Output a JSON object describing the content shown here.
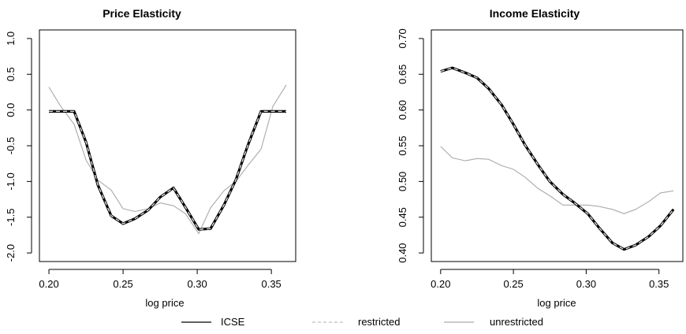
{
  "chart_data": [
    {
      "type": "line",
      "title": "Price Elasticity",
      "xlabel": "log price",
      "ylabel": "",
      "xlim": [
        0.2,
        0.36
      ],
      "ylim": [
        -2.0,
        1.0
      ],
      "x_ticks": [
        0.2,
        0.25,
        0.3,
        0.35
      ],
      "x_tick_labels": [
        "0.20",
        "0.25",
        "0.30",
        "0.35"
      ],
      "y_ticks": [
        -2.0,
        -1.5,
        -1.0,
        -0.5,
        0.0,
        0.5,
        1.0
      ],
      "y_tick_labels": [
        "-2.0",
        "-1.5",
        "-1.0",
        "-0.5",
        "0.0",
        "0.5",
        "1.0"
      ],
      "grid": false,
      "series": [
        {
          "name": "ICSE",
          "color": "#000000",
          "style": "solid",
          "x": [
            0.2,
            0.208,
            0.217,
            0.225,
            0.233,
            0.242,
            0.25,
            0.258,
            0.267,
            0.275,
            0.284,
            0.292,
            0.301,
            0.309,
            0.318,
            0.326,
            0.334,
            0.343,
            0.351,
            0.36
          ],
          "y": [
            -0.02,
            -0.02,
            -0.02,
            -0.45,
            -1.05,
            -1.48,
            -1.59,
            -1.52,
            -1.4,
            -1.22,
            -1.09,
            -1.36,
            -1.67,
            -1.66,
            -1.33,
            -0.98,
            -0.5,
            -0.02,
            -0.02,
            -0.02
          ]
        },
        {
          "name": "restricted",
          "color": "#e8e8e8",
          "style": "dashed",
          "x": [
            0.2,
            0.208,
            0.217,
            0.225,
            0.233,
            0.242,
            0.25,
            0.258,
            0.267,
            0.275,
            0.284,
            0.292,
            0.301,
            0.309,
            0.318,
            0.326,
            0.334,
            0.343,
            0.351,
            0.36
          ],
          "y": [
            -0.02,
            -0.02,
            -0.02,
            -0.45,
            -1.05,
            -1.48,
            -1.59,
            -1.52,
            -1.4,
            -1.22,
            -1.09,
            -1.36,
            -1.67,
            -1.66,
            -1.33,
            -0.98,
            -0.5,
            -0.02,
            -0.02,
            -0.02
          ]
        },
        {
          "name": "unrestricted",
          "color": "#aaaaaa",
          "style": "solid",
          "x": [
            0.2,
            0.208,
            0.217,
            0.225,
            0.233,
            0.242,
            0.25,
            0.258,
            0.267,
            0.275,
            0.284,
            0.292,
            0.301,
            0.309,
            0.318,
            0.326,
            0.334,
            0.343,
            0.351,
            0.36
          ],
          "y": [
            0.32,
            0.05,
            -0.2,
            -0.7,
            -0.98,
            -1.12,
            -1.38,
            -1.42,
            -1.38,
            -1.3,
            -1.34,
            -1.45,
            -1.73,
            -1.37,
            -1.13,
            -1.0,
            -0.78,
            -0.55,
            0.05,
            0.35
          ]
        }
      ]
    },
    {
      "type": "line",
      "title": "Income Elasticity",
      "xlabel": "log price",
      "ylabel": "",
      "xlim": [
        0.2,
        0.36
      ],
      "ylim": [
        0.4,
        0.7
      ],
      "x_ticks": [
        0.2,
        0.25,
        0.3,
        0.35
      ],
      "x_tick_labels": [
        "0.20",
        "0.25",
        "0.30",
        "0.35"
      ],
      "y_ticks": [
        0.4,
        0.45,
        0.5,
        0.55,
        0.6,
        0.65,
        0.7
      ],
      "y_tick_labels": [
        "0.40",
        "0.45",
        "0.50",
        "0.55",
        "0.60",
        "0.65",
        "0.70"
      ],
      "grid": false,
      "series": [
        {
          "name": "ICSE",
          "color": "#000000",
          "style": "solid",
          "x": [
            0.2,
            0.208,
            0.217,
            0.225,
            0.233,
            0.242,
            0.25,
            0.258,
            0.267,
            0.275,
            0.284,
            0.292,
            0.301,
            0.309,
            0.318,
            0.326,
            0.334,
            0.343,
            0.351,
            0.36
          ],
          "y": [
            0.654,
            0.659,
            0.652,
            0.645,
            0.63,
            0.607,
            0.58,
            0.551,
            0.523,
            0.5,
            0.482,
            0.47,
            0.455,
            0.435,
            0.414,
            0.405,
            0.411,
            0.423,
            0.438,
            0.461
          ]
        },
        {
          "name": "restricted",
          "color": "#e8e8e8",
          "style": "dashed",
          "x": [
            0.2,
            0.208,
            0.217,
            0.225,
            0.233,
            0.242,
            0.25,
            0.258,
            0.267,
            0.275,
            0.284,
            0.292,
            0.301,
            0.309,
            0.318,
            0.326,
            0.334,
            0.343,
            0.351,
            0.36
          ],
          "y": [
            0.654,
            0.659,
            0.652,
            0.645,
            0.63,
            0.607,
            0.58,
            0.551,
            0.523,
            0.5,
            0.482,
            0.47,
            0.455,
            0.435,
            0.414,
            0.405,
            0.411,
            0.423,
            0.438,
            0.461
          ]
        },
        {
          "name": "unrestricted",
          "color": "#aaaaaa",
          "style": "solid",
          "x": [
            0.2,
            0.208,
            0.217,
            0.225,
            0.233,
            0.242,
            0.25,
            0.258,
            0.267,
            0.275,
            0.284,
            0.292,
            0.301,
            0.309,
            0.318,
            0.326,
            0.334,
            0.343,
            0.351,
            0.36
          ],
          "y": [
            0.549,
            0.533,
            0.529,
            0.532,
            0.531,
            0.522,
            0.517,
            0.506,
            0.49,
            0.48,
            0.467,
            0.467,
            0.467,
            0.465,
            0.461,
            0.455,
            0.461,
            0.472,
            0.484,
            0.487
          ]
        }
      ]
    }
  ],
  "legend": {
    "placement": "bottom",
    "items": [
      {
        "label": "ICSE",
        "color": "#000000",
        "style": "solid"
      },
      {
        "label": "restricted",
        "color": "#cfcfcf",
        "style": "dashed"
      },
      {
        "label": "unrestricted",
        "color": "#aaaaaa",
        "style": "solid"
      }
    ]
  }
}
